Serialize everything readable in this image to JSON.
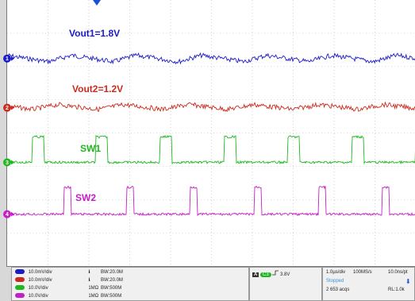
{
  "channels": [
    {
      "id": "ch1",
      "marker": "1",
      "color": "#1b1bc8",
      "label": "Vout1=1.8V",
      "volts_div": "10.0mV/div",
      "coupling": "ℹ",
      "bw": "BW:20.0M",
      "level_frac": 0.22
    },
    {
      "id": "ch2",
      "marker": "2",
      "color": "#cc2a1c",
      "label": "Vout2=1.2V",
      "volts_div": "10.0mV/div",
      "coupling": "ℹ",
      "bw": "BW:20.0M",
      "level_frac": 0.405
    },
    {
      "id": "ch3",
      "marker": "3",
      "color": "#1fb81f",
      "label": "SW1",
      "volts_div": "10.0V/div",
      "coupling": "1MΩ",
      "bw": "BW:500M",
      "level_frac": 0.61
    },
    {
      "id": "ch4",
      "marker": "4",
      "color": "#c61fc6",
      "label": "SW2",
      "volts_div": "10.0V/div",
      "coupling": "1MΩ",
      "bw": "BW:500M",
      "level_frac": 0.805
    }
  ],
  "trigger": {
    "badge": "A",
    "source_badge": "C3",
    "slope_icon": "rising-edge-icon",
    "level": "3.8V"
  },
  "acquisition": {
    "time_div": "1.0µs/div",
    "sample_rate": "100MS/s",
    "sample_interval": "10.0ns/pt",
    "state": "Stopped",
    "acqs": "2 653 acqs",
    "record_length": "RL:1.0k",
    "state_color": "#3a8fe0"
  },
  "colors": {
    "grid": "#b5b5b5",
    "background": "#ffffff",
    "panel": "#f0f0f0"
  }
}
